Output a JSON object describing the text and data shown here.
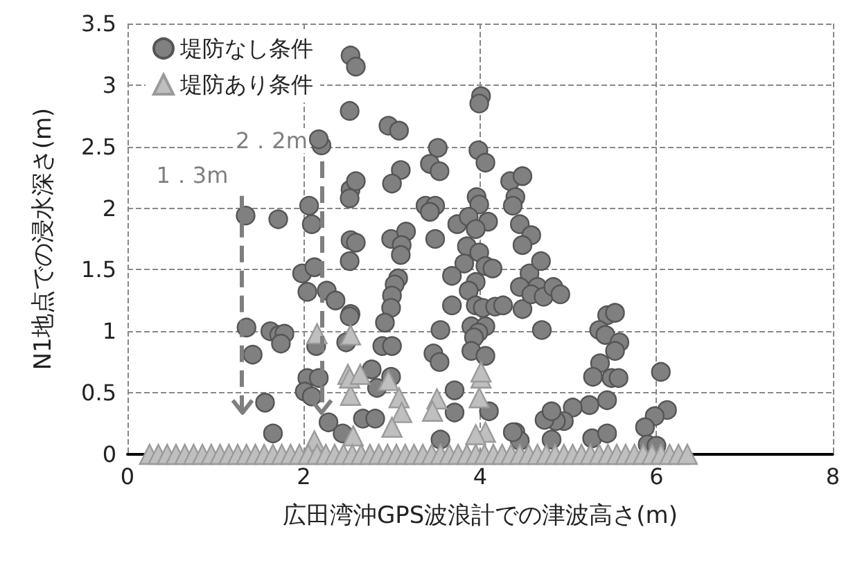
{
  "chart_data": {
    "type": "scatter",
    "xlabel": "広田湾沖GPS波浪計での津波高さ(m)",
    "ylabel": "N1地点での浸水深さ(m)",
    "xlim": [
      0,
      8
    ],
    "xticks": [
      0,
      2,
      4,
      6,
      8
    ],
    "ylim": [
      0,
      3.5
    ],
    "yticks": [
      0,
      0.5,
      1,
      1.5,
      2,
      2.5,
      3,
      3.5
    ],
    "grid": true,
    "legend": "top left",
    "ref_lines": [
      {
        "axis": "x",
        "value": 1.3,
        "label": "1．3m",
        "line_style": "dashed",
        "color": "#7f7f7f"
      },
      {
        "axis": "x",
        "value": 2.2,
        "label": "2．2m",
        "line_style": "dashed",
        "color": "#7f7f7f"
      }
    ],
    "series": [
      {
        "name": "堤防なし条件",
        "color": "#808080",
        "marker": "circle",
        "x": [
          1.35,
          1.42,
          1.34,
          1.71,
          1.62,
          1.72,
          1.78,
          1.74,
          1.56,
          1.65,
          2.06,
          2.09,
          1.98,
          2.12,
          2.04,
          2.26,
          2.36,
          2.53,
          2.14,
          2.04,
          2.17,
          2.01,
          2.09,
          2.28,
          2.44,
          2.2,
          2.17,
          2.53,
          2.52,
          2.59,
          2.53,
          2.59,
          2.52,
          2.52,
          2.48,
          2.53,
          2.59,
          2.52,
          2.96,
          3.08,
          3.52,
          3.98,
          4.06,
          4.01,
          3.99,
          3.43,
          3.54,
          3.1,
          3.0,
          4.34,
          4.48,
          4.4,
          4.37,
          3.38,
          3.49,
          3.43,
          3.96,
          3.99,
          3.74,
          3.87,
          4.09,
          3.95,
          2.99,
          3.16,
          3.11,
          3.1,
          3.49,
          4.45,
          4.58,
          4.48,
          3.85,
          3.99,
          3.82,
          4.06,
          4.14,
          3.68,
          3.07,
          3.03,
          3.95,
          3.87,
          4.56,
          4.45,
          3.0,
          2.99,
          3.68,
          3.95,
          4.03,
          4.17,
          4.26,
          4.48,
          2.92,
          3.9,
          4.06,
          3.98,
          3.93,
          3.55,
          2.89,
          3.0,
          3.47,
          3.54,
          3.9,
          4.06,
          4.1,
          3.71,
          3.71,
          2.77,
          2.83,
          2.99,
          2.67,
          2.81,
          3.55,
          4.4,
          4.45,
          4.69,
          4.65,
          4.58,
          4.72,
          4.83,
          4.91,
          4.7,
          5.44,
          5.53,
          5.35,
          5.42,
          5.58,
          5.53,
          5.36,
          5.28,
          5.49,
          5.57,
          6.05,
          5.44,
          5.24,
          5.05,
          4.95,
          4.86,
          4.73,
          4.81,
          6.12,
          5.98,
          5.87,
          5.27,
          5.44,
          4.81,
          4.37,
          5.9,
          6.0
        ],
        "values": [
          1.03,
          0.81,
          1.94,
          1.91,
          1.0,
          0.97,
          0.98,
          0.9,
          0.42,
          0.17,
          2.02,
          1.87,
          1.47,
          1.52,
          1.32,
          1.33,
          1.25,
          1.14,
          0.88,
          0.62,
          0.62,
          0.51,
          0.47,
          0.26,
          0.17,
          2.51,
          2.56,
          2.15,
          2.08,
          2.22,
          1.74,
          1.72,
          1.57,
          1.12,
          0.91,
          3.24,
          3.15,
          2.79,
          2.67,
          2.63,
          2.49,
          2.47,
          2.37,
          2.91,
          2.85,
          2.36,
          2.3,
          2.31,
          2.2,
          2.22,
          2.26,
          2.09,
          2.02,
          2.02,
          2.02,
          1.97,
          2.09,
          2.03,
          1.87,
          1.93,
          1.89,
          1.83,
          1.75,
          1.81,
          1.7,
          1.62,
          1.75,
          1.87,
          1.78,
          1.7,
          1.69,
          1.64,
          1.55,
          1.53,
          1.51,
          1.45,
          1.43,
          1.38,
          1.4,
          1.33,
          1.47,
          1.36,
          1.29,
          1.19,
          1.21,
          1.21,
          1.19,
          1.2,
          1.21,
          1.18,
          1.07,
          1.04,
          1.04,
          0.99,
          0.95,
          1.01,
          0.88,
          0.88,
          0.82,
          0.75,
          0.84,
          0.8,
          0.35,
          0.52,
          0.34,
          0.69,
          0.54,
          0.63,
          0.29,
          0.29,
          0.12,
          0.18,
          0.11,
          1.57,
          1.36,
          1.3,
          1.28,
          1.36,
          1.3,
          1.01,
          1.13,
          1.15,
          1.01,
          0.97,
          0.91,
          0.84,
          0.74,
          0.63,
          0.62,
          0.62,
          0.67,
          0.44,
          0.4,
          0.38,
          0.27,
          0.27,
          0.28,
          0.35,
          0.36,
          0.31,
          0.22,
          0.13,
          0.17,
          0.12,
          0.18,
          0.08,
          0.07
        ]
      },
      {
        "name": "堤防あり条件",
        "color": "#bfbfbf",
        "marker": "triangle",
        "x": [
          2.15,
          2.53,
          2.5,
          2.53,
          2.12,
          2.52,
          2.64,
          2.96,
          3.08,
          3.11,
          3.0,
          3.51,
          3.46,
          4.01,
          3.99,
          4.06,
          3.95,
          2.56,
          4.01,
          0.25,
          0.35,
          0.45,
          0.55,
          0.65,
          0.75,
          0.85,
          0.95,
          1.05,
          1.15,
          1.25,
          1.35,
          1.45,
          1.55,
          1.65,
          1.75,
          1.85,
          1.95,
          2.05,
          2.15,
          2.25,
          2.35,
          2.45,
          2.55,
          2.65,
          2.75,
          2.85,
          2.95,
          3.05,
          3.15,
          3.25,
          3.35,
          3.45,
          3.55,
          3.65,
          3.75,
          3.85,
          3.95,
          4.05,
          4.15,
          4.25,
          4.35,
          4.45,
          4.55,
          4.65,
          4.75,
          4.85,
          4.95,
          5.05,
          5.15,
          5.25,
          5.35,
          5.45,
          5.55,
          5.65,
          5.75,
          5.85,
          5.95,
          6.05,
          6.15,
          6.25,
          6.35
        ],
        "values": [
          0.98,
          0.97,
          0.65,
          0.48,
          0.11,
          0.62,
          0.65,
          0.6,
          0.46,
          0.34,
          0.22,
          0.45,
          0.35,
          0.62,
          0.46,
          0.18,
          0.16,
          0.15,
          0.67,
          0,
          0,
          0,
          0,
          0,
          0,
          0,
          0,
          0,
          0,
          0,
          0,
          0,
          0,
          0,
          0,
          0,
          0,
          0,
          0,
          0,
          0,
          0,
          0,
          0,
          0,
          0,
          0,
          0,
          0,
          0,
          0,
          0,
          0,
          0,
          0,
          0,
          0,
          0,
          0,
          0,
          0,
          0,
          0,
          0,
          0,
          0,
          0,
          0,
          0,
          0,
          0,
          0,
          0,
          0,
          0,
          0,
          0,
          0,
          0,
          0,
          0
        ]
      }
    ]
  }
}
